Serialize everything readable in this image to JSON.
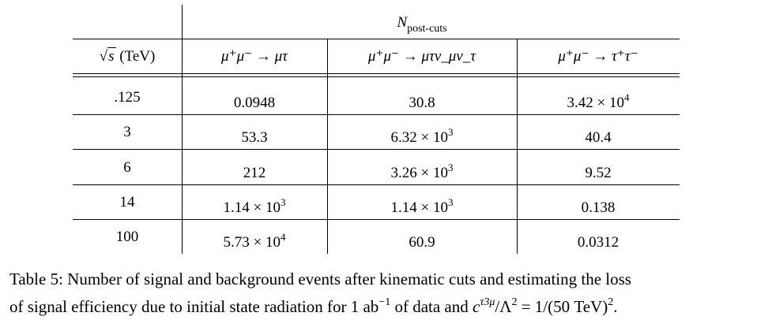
{
  "table": {
    "group_header": {
      "symbol": "N",
      "subscript": "post-cuts"
    },
    "col_sqrt_s": {
      "radical": "√",
      "var": "s",
      "unit": "(TeV)"
    },
    "col1": "μ⁺μ⁻ → μτ",
    "col2": "μ⁺μ⁻ → μτν_μν_τ",
    "col3": "μ⁺μ⁻ → τ⁺τ⁻",
    "rows": [
      {
        "s": ".125",
        "c1": {
          "m": "0.0948",
          "e": ""
        },
        "c2": {
          "m": "30.8",
          "e": ""
        },
        "c3": {
          "m": "3.42 × 10",
          "e": "4"
        }
      },
      {
        "s": "3",
        "c1": {
          "m": "53.3",
          "e": ""
        },
        "c2": {
          "m": "6.32 × 10",
          "e": "3"
        },
        "c3": {
          "m": "40.4",
          "e": ""
        }
      },
      {
        "s": "6",
        "c1": {
          "m": "212",
          "e": ""
        },
        "c2": {
          "m": "3.26 × 10",
          "e": "3"
        },
        "c3": {
          "m": "9.52",
          "e": ""
        }
      },
      {
        "s": "14",
        "c1": {
          "m": "1.14 × 10",
          "e": "3"
        },
        "c2": {
          "m": "1.14 × 10",
          "e": "3"
        },
        "c3": {
          "m": "0.138",
          "e": ""
        }
      },
      {
        "s": "100",
        "c1": {
          "m": "5.73 × 10",
          "e": "4"
        },
        "c2": {
          "m": "60.9",
          "e": ""
        },
        "c3": {
          "m": "0.0312",
          "e": ""
        }
      }
    ]
  },
  "caption": {
    "line1": "Table 5: Number of signal and background events after kinematic cuts and estimating the loss",
    "line2_a": "of signal efficiency due to initial state radiation for 1 ab",
    "line2_sup": "−1",
    "line2_b": " of data and ",
    "line2_c": "c",
    "line2_csup": "τ3μ",
    "line2_d": "/Λ",
    "line2_dsup": "2",
    "line2_e": " = 1/(50 TeV)",
    "line2_esup": "2",
    "line2_f": "."
  }
}
